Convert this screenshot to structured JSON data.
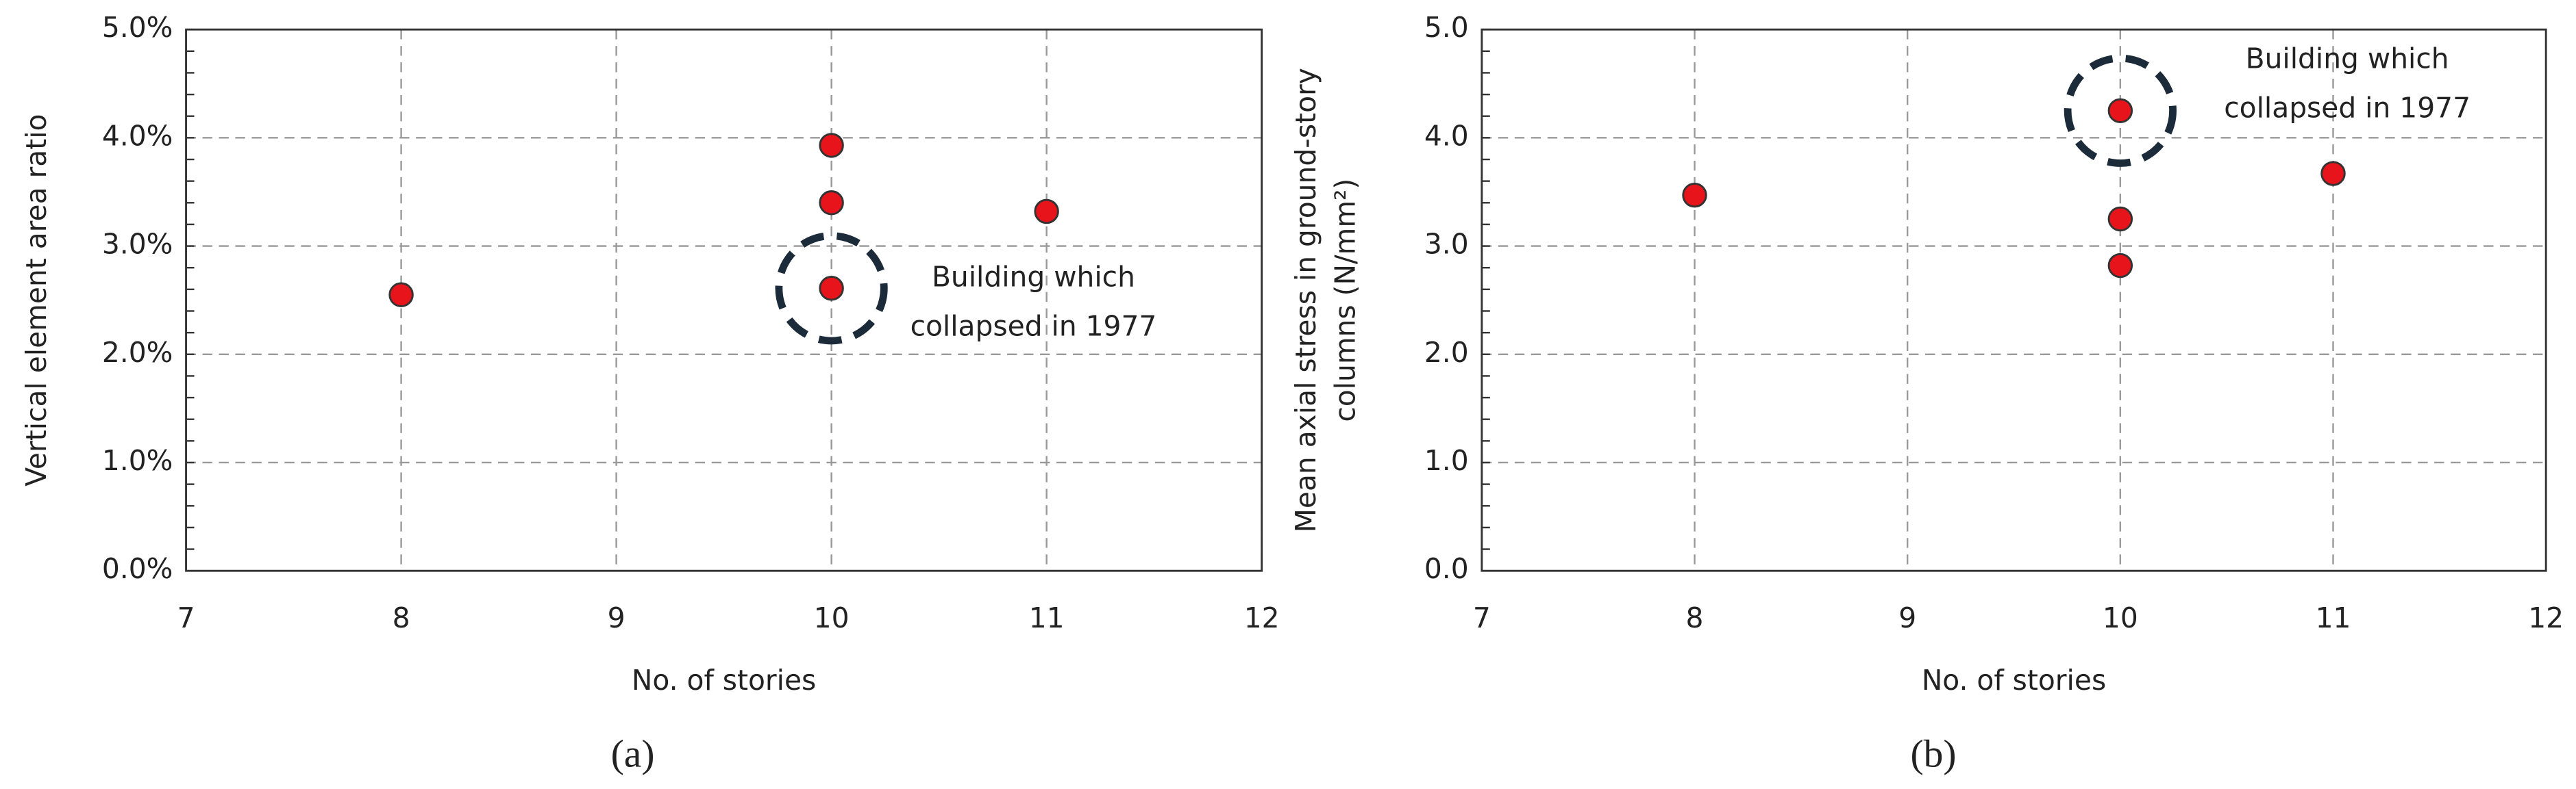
{
  "chart_data": [
    {
      "type": "scatter",
      "x_label": "No. of stories",
      "y_label": [
        "Vertical element area ratio"
      ],
      "x": [
        8,
        10,
        10,
        10,
        11
      ],
      "values": [
        2.55,
        3.93,
        3.4,
        2.61,
        3.32
      ],
      "color": "#e8141b",
      "xlim": [
        7,
        12
      ],
      "xticks": [
        7,
        8,
        9,
        10,
        11,
        12
      ],
      "ylim": [
        0,
        5
      ],
      "yticks": [
        {
          "value": 0,
          "label": "0.0%"
        },
        {
          "value": 1,
          "label": "1.0%"
        },
        {
          "value": 2,
          "label": "2.0%"
        },
        {
          "value": 3,
          "label": "3.0%"
        },
        {
          "value": 4,
          "label": "4.0%"
        },
        {
          "value": 5,
          "label": "5.0%"
        }
      ],
      "grid": true,
      "annotation": [
        "Building which",
        "collapsed in 1977"
      ],
      "caption": "(a)"
    },
    {
      "type": "scatter",
      "x_label": "No. of stories",
      "y_label": [
        "Mean axial stress in ground-story",
        "columns (N/mm²)"
      ],
      "x": [
        8,
        10,
        10,
        10,
        11
      ],
      "values": [
        3.47,
        4.25,
        3.25,
        2.82,
        3.67
      ],
      "color": "#e8141b",
      "xlim": [
        7,
        12
      ],
      "xticks": [
        7,
        8,
        9,
        10,
        11,
        12
      ],
      "ylim": [
        0,
        5
      ],
      "yticks": [
        {
          "value": 0,
          "label": "0.0"
        },
        {
          "value": 1,
          "label": "1.0"
        },
        {
          "value": 2,
          "label": "2.0"
        },
        {
          "value": 3,
          "label": "3.0"
        },
        {
          "value": 4,
          "label": "4.0"
        },
        {
          "value": 5,
          "label": "5.0"
        }
      ],
      "grid": true,
      "annotation": [
        "Building which",
        "collapsed in 1977"
      ],
      "caption": "(b)"
    }
  ]
}
